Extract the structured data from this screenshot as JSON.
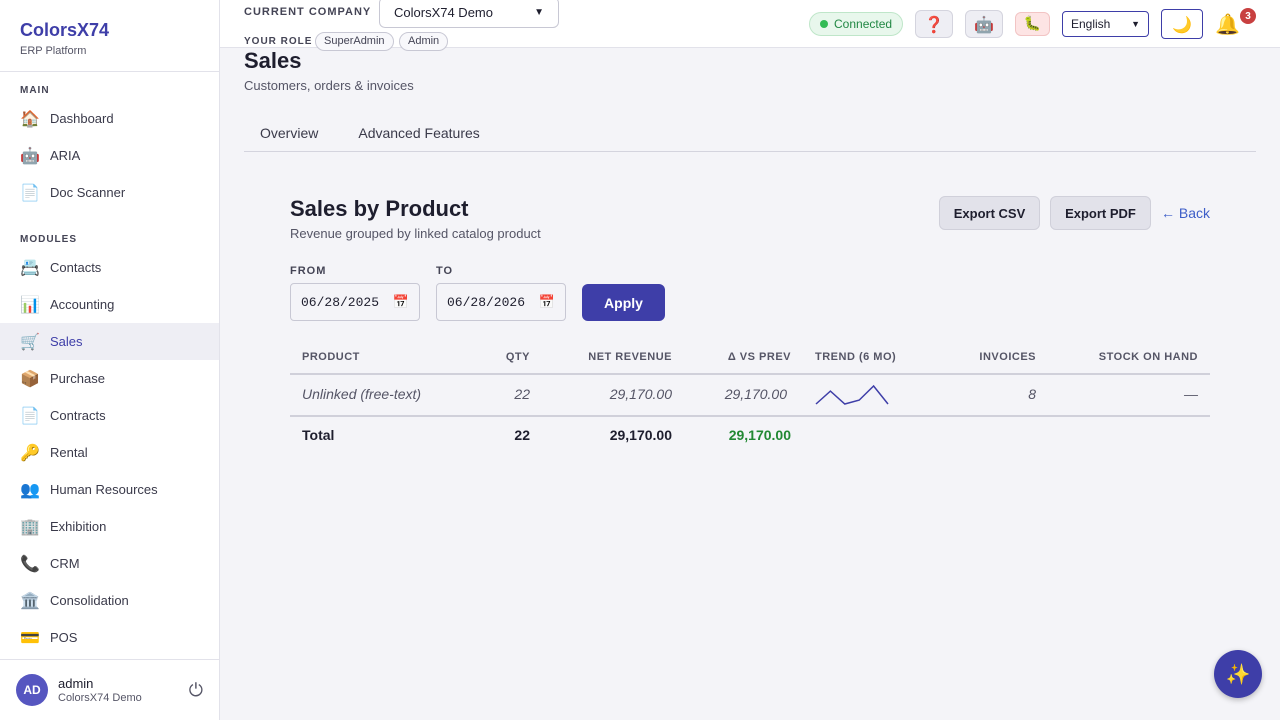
{
  "brand": {
    "name": "ColorsX74",
    "subtitle": "ERP Platform"
  },
  "sidebar": {
    "main_section": "MAIN",
    "main_items": [
      {
        "label": "Dashboard",
        "icon": "🏠",
        "icon_name": "home-icon"
      },
      {
        "label": "ARIA",
        "icon": "🤖",
        "icon_name": "robot-icon"
      },
      {
        "label": "Doc Scanner",
        "icon": "📄",
        "icon_name": "document-icon"
      }
    ],
    "modules_section": "MODULES",
    "module_items": [
      {
        "label": "Contacts",
        "icon": "📇",
        "icon_name": "card-index-icon"
      },
      {
        "label": "Accounting",
        "icon": "📊",
        "icon_name": "bar-chart-icon"
      },
      {
        "label": "Sales",
        "icon": "🛒",
        "icon_name": "cart-icon",
        "active": true
      },
      {
        "label": "Purchase",
        "icon": "📦",
        "icon_name": "package-icon"
      },
      {
        "label": "Contracts",
        "icon": "📄",
        "icon_name": "document-icon"
      },
      {
        "label": "Rental",
        "icon": "🔑",
        "icon_name": "key-icon"
      },
      {
        "label": "Human Resources",
        "icon": "👥",
        "icon_name": "people-icon"
      },
      {
        "label": "Exhibition",
        "icon": "🏢",
        "icon_name": "building-icon"
      },
      {
        "label": "CRM",
        "icon": "📞",
        "icon_name": "phone-icon"
      },
      {
        "label": "Consolidation",
        "icon": "🏛️",
        "icon_name": "classical-building-icon"
      },
      {
        "label": "POS",
        "icon": "💳",
        "icon_name": "credit-card-icon"
      }
    ],
    "user": {
      "initials": "AD",
      "name": "admin",
      "company": "ColorsX74 Demo"
    }
  },
  "topbar": {
    "company_label": "CURRENT COMPANY",
    "company_value": "ColorsX74 Demo",
    "role_label": "YOUR ROLE",
    "roles": [
      "SuperAdmin",
      "Admin"
    ],
    "connection_status": "Connected",
    "language": "English",
    "notification_count": "3"
  },
  "page": {
    "title": "Sales",
    "subtitle": "Customers, orders & invoices",
    "tabs": [
      "Overview",
      "Advanced Features"
    ]
  },
  "report": {
    "title": "Sales by Product",
    "subtitle": "Revenue grouped by linked catalog product",
    "export_csv": "Export CSV",
    "export_pdf": "Export PDF",
    "back": "← Back",
    "from_label": "FROM",
    "from_value": "06/28/2025",
    "to_label": "TO",
    "to_value": "06/28/2026",
    "apply": "Apply",
    "columns": [
      "PRODUCT",
      "QTY",
      "NET REVENUE",
      "Δ VS PREV",
      "TREND (6 MO)",
      "INVOICES",
      "STOCK ON HAND"
    ],
    "row": {
      "product": "Unlinked (free-text)",
      "qty": "22",
      "net_revenue": "29,170.00",
      "delta": "29,170.00",
      "trend": [
        0,
        1,
        0,
        0.3,
        1.4,
        0
      ],
      "invoices": "8",
      "stock": "—"
    },
    "total": {
      "label": "Total",
      "qty": "22",
      "net_revenue": "29,170.00",
      "delta": "29,170.00"
    }
  },
  "colors": {
    "accent": "#3e3ea8",
    "positive": "#228833",
    "link": "#3e5ec8"
  }
}
